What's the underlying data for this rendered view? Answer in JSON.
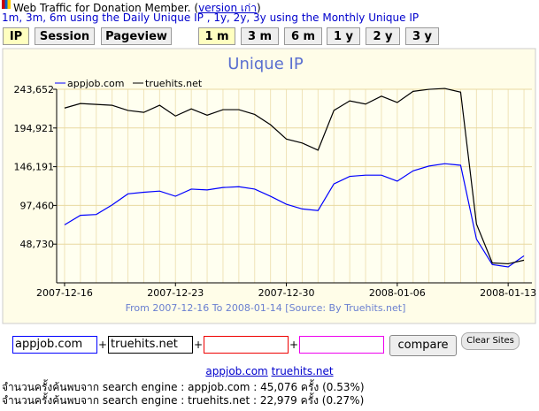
{
  "header": {
    "title": "Web Traffic for Donation Member.",
    "version_prefix": "(",
    "version_link": "version เก่า",
    "version_suffix": ")",
    "note": "1m, 3m, 6m using the Daily Unique IP , 1y, 2y, 3y using the Monthly Unique IP"
  },
  "tabs": {
    "metrics": [
      "IP",
      "Session",
      "Pageview"
    ],
    "periods": [
      "1 m",
      "3 m",
      "6 m",
      "1 y",
      "2 y",
      "3 y"
    ]
  },
  "chart_data": {
    "type": "line",
    "title": "Unique IP",
    "subtitle": "From 2007-12-16 To 2008-01-14 [Source: By Truehits.net]",
    "categories": [
      "2007-12-16",
      null,
      null,
      null,
      null,
      null,
      null,
      "2007-12-23",
      null,
      null,
      null,
      null,
      null,
      null,
      "2007-12-30",
      null,
      null,
      null,
      null,
      null,
      null,
      "2008-01-06",
      null,
      null,
      null,
      null,
      null,
      null,
      "2008-01-13",
      null
    ],
    "series": [
      {
        "name": "appjob.com",
        "color": "#0000ff",
        "values": [
          73000,
          85000,
          86000,
          98000,
          112000,
          114000,
          115500,
          109000,
          118000,
          117000,
          120000,
          121000,
          118000,
          109000,
          99000,
          93000,
          91000,
          124500,
          134000,
          135500,
          135500,
          128000,
          141000,
          147000,
          150000,
          148000,
          55000,
          23000,
          20000,
          34000
        ]
      },
      {
        "name": "truehits.net",
        "color": "#000000",
        "values": [
          220000,
          225700,
          224600,
          223500,
          217000,
          214600,
          223500,
          210000,
          219000,
          211000,
          218000,
          218000,
          212000,
          199000,
          181000,
          176000,
          167000,
          217000,
          229000,
          225000,
          235000,
          227000,
          241000,
          243600,
          244700,
          240000,
          74000,
          25000,
          24000,
          28500
        ]
      }
    ],
    "ylim": [
      0,
      243652
    ],
    "yticks": [
      {
        "value": 48730,
        "label": "48,730"
      },
      {
        "value": 97460,
        "label": "97,460"
      },
      {
        "value": 146191,
        "label": "146,191"
      },
      {
        "value": 194921,
        "label": "194,921"
      },
      {
        "value": 243652,
        "label": "243,652"
      }
    ],
    "grid": true
  },
  "form": {
    "site1": "appjob.com",
    "site2": "truehits.net",
    "separators": [
      "+",
      "+",
      "+"
    ],
    "compare": "compare",
    "clear": "Clear Sites"
  },
  "footer": {
    "links": [
      "appjob.com",
      "truehits.net"
    ],
    "lines": [
      "จำนวนครั้งค้นพบจาก search engine : appjob.com : 45,076 ครั้ง (0.53%)",
      "จำนวนครั้งค้นพบจาก search engine : truehits.net : 22,979 ครั้ง (0.27%)"
    ]
  }
}
